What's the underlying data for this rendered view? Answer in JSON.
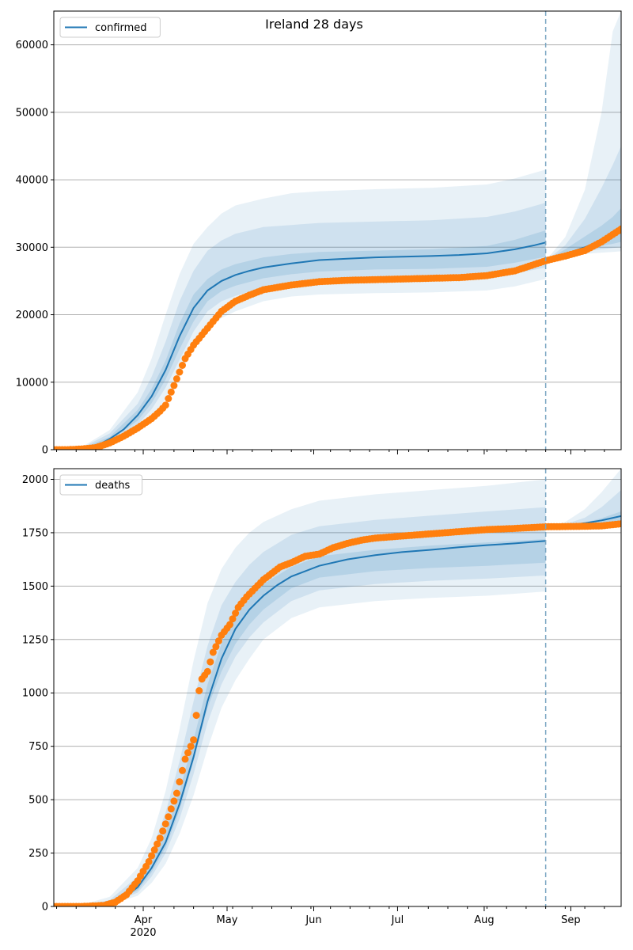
{
  "chart_data": [
    {
      "type": "line",
      "title": "Ireland 28 days",
      "legend": {
        "label": "confirmed",
        "placement": "top-left"
      },
      "grid": "horizontal",
      "ylim": [
        0,
        65000
      ],
      "yticks": [
        0,
        10000,
        20000,
        30000,
        40000,
        50000,
        60000
      ],
      "x_axis": {
        "type": "date",
        "start": "2020-02-29",
        "end": "2020-09-19"
      },
      "forecast_start": "2020-08-23",
      "colors": {
        "model": "#1f77b4",
        "observed": "#ff7f0e",
        "band": "#1f77b4",
        "forecast_line": "#7aa6c2"
      },
      "model_median": {
        "x": [
          "2020-02-29",
          "2020-03-05",
          "2020-03-10",
          "2020-03-15",
          "2020-03-20",
          "2020-03-25",
          "2020-03-30",
          "2020-04-04",
          "2020-04-09",
          "2020-04-14",
          "2020-04-19",
          "2020-04-24",
          "2020-04-29",
          "2020-05-04",
          "2020-05-09",
          "2020-05-14",
          "2020-05-24",
          "2020-06-03",
          "2020-06-13",
          "2020-06-23",
          "2020-07-03",
          "2020-07-13",
          "2020-07-23",
          "2020-08-02",
          "2020-08-12",
          "2020-08-19",
          "2020-08-23"
        ],
        "y": [
          0,
          0,
          100,
          500,
          1600,
          3000,
          5100,
          7900,
          11800,
          16800,
          21000,
          23600,
          25000,
          25900,
          26500,
          27000,
          27600,
          28100,
          28300,
          28500,
          28600,
          28700,
          28850,
          29100,
          29700,
          30300,
          30700
        ]
      },
      "bands": [
        {
          "name": "outer",
          "x": [
            "2020-02-29",
            "2020-03-10",
            "2020-03-20",
            "2020-03-30",
            "2020-04-04",
            "2020-04-09",
            "2020-04-14",
            "2020-04-19",
            "2020-04-24",
            "2020-04-29",
            "2020-05-04",
            "2020-05-14",
            "2020-05-24",
            "2020-06-03",
            "2020-06-23",
            "2020-07-13",
            "2020-08-02",
            "2020-08-12",
            "2020-08-23"
          ],
          "lo": [
            0,
            0,
            800,
            2800,
            4700,
            7500,
            11000,
            15000,
            18000,
            19500,
            20500,
            22000,
            22700,
            23000,
            23200,
            23300,
            23600,
            24200,
            25300
          ],
          "hi": [
            0,
            400,
            2900,
            8500,
            13500,
            20000,
            26000,
            30500,
            33000,
            35000,
            36200,
            37200,
            38000,
            38300,
            38600,
            38800,
            39300,
            40200,
            41500
          ]
        },
        {
          "name": "middle",
          "x": [
            "2020-02-29",
            "2020-03-10",
            "2020-03-20",
            "2020-03-30",
            "2020-04-04",
            "2020-04-09",
            "2020-04-14",
            "2020-04-19",
            "2020-04-24",
            "2020-04-29",
            "2020-05-04",
            "2020-05-14",
            "2020-05-24",
            "2020-06-03",
            "2020-06-23",
            "2020-07-13",
            "2020-08-02",
            "2020-08-12",
            "2020-08-23"
          ],
          "lo": [
            0,
            0,
            1100,
            3700,
            6000,
            9200,
            13300,
            17500,
            20500,
            22000,
            22800,
            24000,
            24500,
            24800,
            25100,
            25200,
            25500,
            26100,
            27000
          ],
          "hi": [
            0,
            280,
            2400,
            6800,
            10800,
            16000,
            22000,
            26500,
            29500,
            31000,
            32000,
            33000,
            33300,
            33600,
            33800,
            34000,
            34500,
            35300,
            36600
          ]
        },
        {
          "name": "inner",
          "x": [
            "2020-02-29",
            "2020-03-10",
            "2020-03-20",
            "2020-03-30",
            "2020-04-04",
            "2020-04-09",
            "2020-04-14",
            "2020-04-19",
            "2020-04-24",
            "2020-04-29",
            "2020-05-04",
            "2020-05-14",
            "2020-05-24",
            "2020-06-03",
            "2020-06-23",
            "2020-07-13",
            "2020-08-02",
            "2020-08-12",
            "2020-08-23"
          ],
          "lo": [
            0,
            30,
            1300,
            4300,
            6900,
            10400,
            14900,
            19000,
            22000,
            23500,
            24300,
            25400,
            26000,
            26400,
            26700,
            26800,
            27100,
            27700,
            28600
          ],
          "hi": [
            0,
            180,
            1900,
            5900,
            9000,
            13200,
            18700,
            23000,
            25300,
            26700,
            27500,
            28500,
            29000,
            29300,
            29500,
            29700,
            30200,
            31100,
            32500
          ]
        }
      ],
      "forecast_bands": [
        {
          "name": "outer",
          "x": [
            "2020-08-23",
            "2020-08-30",
            "2020-09-06",
            "2020-09-12",
            "2020-09-16",
            "2020-09-19"
          ],
          "lo": [
            28000,
            28600,
            29000,
            29200,
            29300,
            29400
          ],
          "hi": [
            28000,
            31500,
            38500,
            50000,
            62000,
            65000
          ]
        },
        {
          "name": "middle",
          "x": [
            "2020-08-23",
            "2020-08-30",
            "2020-09-06",
            "2020-09-12",
            "2020-09-16",
            "2020-09-19"
          ],
          "lo": [
            28000,
            28800,
            29400,
            29700,
            29900,
            30000
          ],
          "hi": [
            28000,
            30300,
            34200,
            38800,
            42200,
            45000
          ]
        },
        {
          "name": "inner",
          "x": [
            "2020-08-23",
            "2020-08-30",
            "2020-09-06",
            "2020-09-12",
            "2020-09-16",
            "2020-09-19"
          ],
          "lo": [
            28000,
            29000,
            29700,
            30200,
            30500,
            30800
          ],
          "hi": [
            28000,
            29700,
            31600,
            33200,
            34500,
            35800
          ]
        }
      ],
      "forecast_median": {
        "x": [
          "2020-08-23",
          "2020-08-30",
          "2020-09-06",
          "2020-09-12",
          "2020-09-19"
        ],
        "y": [
          28000,
          29000,
          30000,
          31000,
          32200
        ]
      },
      "observed": {
        "x": [
          "2020-02-29",
          "2020-03-05",
          "2020-03-10",
          "2020-03-15",
          "2020-03-20",
          "2020-03-25",
          "2020-03-30",
          "2020-04-04",
          "2020-04-07",
          "2020-04-09",
          "2020-04-12",
          "2020-04-14",
          "2020-04-16",
          "2020-04-19",
          "2020-04-24",
          "2020-04-29",
          "2020-05-04",
          "2020-05-09",
          "2020-05-14",
          "2020-05-24",
          "2020-06-03",
          "2020-06-13",
          "2020-06-23",
          "2020-07-03",
          "2020-07-13",
          "2020-07-23",
          "2020-08-02",
          "2020-08-12",
          "2020-08-23",
          "2020-08-30",
          "2020-09-06",
          "2020-09-12",
          "2020-09-19"
        ],
        "y": [
          0,
          0,
          100,
          300,
          1000,
          2000,
          3200,
          4600,
          5700,
          6600,
          9500,
          11500,
          13500,
          15500,
          18000,
          20500,
          22000,
          22900,
          23700,
          24400,
          24900,
          25100,
          25200,
          25300,
          25400,
          25500,
          25800,
          26500,
          28000,
          28700,
          29500,
          30800,
          32700
        ]
      },
      "xticks": [
        "Apr",
        "May",
        "Jun",
        "Jul",
        "Aug",
        "Sep"
      ]
    },
    {
      "type": "line",
      "legend": {
        "label": "deaths",
        "placement": "top-left"
      },
      "grid": "horizontal",
      "ylim": [
        0,
        2050
      ],
      "yticks": [
        0,
        250,
        500,
        750,
        1000,
        1250,
        1500,
        1750,
        2000
      ],
      "x_axis": {
        "type": "date",
        "start": "2020-02-29",
        "end": "2020-09-19"
      },
      "forecast_start": "2020-08-23",
      "model_median": {
        "x": [
          "2020-02-29",
          "2020-03-10",
          "2020-03-20",
          "2020-03-25",
          "2020-03-30",
          "2020-04-04",
          "2020-04-09",
          "2020-04-14",
          "2020-04-19",
          "2020-04-24",
          "2020-04-29",
          "2020-05-04",
          "2020-05-09",
          "2020-05-14",
          "2020-05-19",
          "2020-05-24",
          "2020-06-03",
          "2020-06-13",
          "2020-06-23",
          "2020-07-03",
          "2020-07-13",
          "2020-07-23",
          "2020-08-02",
          "2020-08-12",
          "2020-08-23"
        ],
        "y": [
          0,
          2,
          15,
          40,
          90,
          180,
          300,
          480,
          700,
          960,
          1160,
          1300,
          1390,
          1455,
          1505,
          1545,
          1595,
          1625,
          1645,
          1660,
          1670,
          1682,
          1692,
          1700,
          1712
        ]
      },
      "bands": [
        {
          "name": "outer",
          "x": [
            "2020-02-29",
            "2020-03-10",
            "2020-03-20",
            "2020-03-30",
            "2020-04-04",
            "2020-04-09",
            "2020-04-14",
            "2020-04-19",
            "2020-04-24",
            "2020-04-29",
            "2020-05-04",
            "2020-05-09",
            "2020-05-14",
            "2020-05-24",
            "2020-06-03",
            "2020-06-23",
            "2020-07-13",
            "2020-08-02",
            "2020-08-23"
          ],
          "lo": [
            0,
            0,
            8,
            50,
            110,
            200,
            340,
            520,
            740,
            930,
            1060,
            1160,
            1250,
            1350,
            1400,
            1430,
            1445,
            1455,
            1475
          ],
          "hi": [
            0,
            8,
            45,
            180,
            320,
            540,
            830,
            1150,
            1420,
            1580,
            1680,
            1750,
            1800,
            1860,
            1900,
            1930,
            1950,
            1970,
            2000
          ]
        },
        {
          "name": "middle",
          "x": [
            "2020-02-29",
            "2020-03-10",
            "2020-03-20",
            "2020-03-30",
            "2020-04-04",
            "2020-04-09",
            "2020-04-14",
            "2020-04-19",
            "2020-04-24",
            "2020-04-29",
            "2020-05-04",
            "2020-05-09",
            "2020-05-14",
            "2020-05-24",
            "2020-06-03",
            "2020-06-23",
            "2020-07-13",
            "2020-08-02",
            "2020-08-23"
          ],
          "lo": [
            0,
            0,
            10,
            65,
            140,
            250,
            410,
            620,
            860,
            1040,
            1170,
            1260,
            1330,
            1430,
            1480,
            1510,
            1525,
            1535,
            1550
          ],
          "hi": [
            0,
            5,
            30,
            140,
            260,
            440,
            680,
            960,
            1220,
            1410,
            1520,
            1600,
            1660,
            1740,
            1780,
            1810,
            1830,
            1850,
            1870
          ]
        },
        {
          "name": "inner",
          "x": [
            "2020-02-29",
            "2020-03-10",
            "2020-03-20",
            "2020-03-30",
            "2020-04-04",
            "2020-04-09",
            "2020-04-14",
            "2020-04-19",
            "2020-04-24",
            "2020-04-29",
            "2020-05-04",
            "2020-05-09",
            "2020-05-14",
            "2020-05-24",
            "2020-06-03",
            "2020-06-23",
            "2020-07-13",
            "2020-08-02",
            "2020-08-23"
          ],
          "lo": [
            0,
            1,
            12,
            75,
            160,
            275,
            450,
            680,
            930,
            1100,
            1230,
            1320,
            1390,
            1490,
            1540,
            1570,
            1585,
            1595,
            1610
          ],
          "hi": [
            0,
            3,
            22,
            110,
            210,
            350,
            540,
            780,
            1040,
            1230,
            1360,
            1440,
            1510,
            1590,
            1640,
            1670,
            1690,
            1705,
            1720
          ]
        }
      ],
      "forecast_bands": [
        {
          "name": "outer",
          "x": [
            "2020-08-23",
            "2020-08-30",
            "2020-09-06",
            "2020-09-12",
            "2020-09-19"
          ],
          "lo": [
            1778,
            1778,
            1778,
            1780,
            1785
          ],
          "hi": [
            1778,
            1800,
            1860,
            1940,
            2050
          ]
        },
        {
          "name": "middle",
          "x": [
            "2020-08-23",
            "2020-08-30",
            "2020-09-06",
            "2020-09-12",
            "2020-09-19"
          ],
          "lo": [
            1778,
            1778,
            1779,
            1781,
            1786
          ],
          "hi": [
            1778,
            1790,
            1820,
            1870,
            1950
          ]
        },
        {
          "name": "inner",
          "x": [
            "2020-08-23",
            "2020-08-30",
            "2020-09-06",
            "2020-09-12",
            "2020-09-19"
          ],
          "lo": [
            1778,
            1779,
            1780,
            1783,
            1790
          ],
          "hi": [
            1778,
            1784,
            1798,
            1818,
            1850
          ]
        }
      ],
      "forecast_median": {
        "x": [
          "2020-08-23",
          "2020-08-30",
          "2020-09-06",
          "2020-09-12",
          "2020-09-19"
        ],
        "y": [
          1778,
          1782,
          1795,
          1808,
          1828
        ]
      },
      "observed": {
        "x": [
          "2020-02-29",
          "2020-03-10",
          "2020-03-18",
          "2020-03-22",
          "2020-03-26",
          "2020-03-30",
          "2020-04-03",
          "2020-04-07",
          "2020-04-10",
          "2020-04-13",
          "2020-04-16",
          "2020-04-19",
          "2020-04-21",
          "2020-04-22",
          "2020-04-24",
          "2020-04-26",
          "2020-04-29",
          "2020-05-02",
          "2020-05-05",
          "2020-05-08",
          "2020-05-11",
          "2020-05-14",
          "2020-05-17",
          "2020-05-20",
          "2020-05-24",
          "2020-05-29",
          "2020-06-03",
          "2020-06-08",
          "2020-06-13",
          "2020-06-18",
          "2020-06-23",
          "2020-07-03",
          "2020-07-13",
          "2020-07-23",
          "2020-08-02",
          "2020-08-12",
          "2020-08-23",
          "2020-09-05",
          "2020-09-12",
          "2020-09-19"
        ],
        "y": [
          0,
          0,
          5,
          20,
          55,
          120,
          210,
          320,
          420,
          530,
          690,
          780,
          1010,
          1065,
          1100,
          1190,
          1270,
          1320,
          1400,
          1450,
          1490,
          1530,
          1560,
          1590,
          1610,
          1640,
          1650,
          1680,
          1700,
          1715,
          1725,
          1735,
          1745,
          1755,
          1765,
          1770,
          1778,
          1780,
          1782,
          1792
        ]
      },
      "xticks": [
        "Apr",
        "May",
        "Jun",
        "Jul",
        "Aug",
        "Sep"
      ],
      "x_sublabel": "2020"
    }
  ]
}
